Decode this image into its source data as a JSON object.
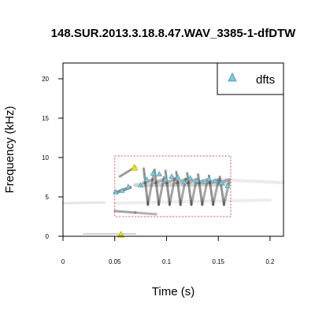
{
  "chart_data": {
    "type": "scatter",
    "title": "148.SUR.2013.3.18.8.47.WAV_3385-1-dfDTW",
    "xlabel": "Time (s)",
    "ylabel": "Frequency (kHz)",
    "xlim": [
      0,
      0.213
    ],
    "ylim": [
      0,
      22
    ],
    "x_ticks": [
      {
        "value": 0,
        "label": "0"
      },
      {
        "value": 0.05,
        "label": "0.05"
      },
      {
        "value": 0.1,
        "label": "0.1"
      },
      {
        "value": 0.15,
        "label": "0.15"
      },
      {
        "value": 0.2,
        "label": "0.2"
      }
    ],
    "y_ticks": [
      {
        "value": 0,
        "label": "0"
      },
      {
        "value": 5,
        "label": "5"
      },
      {
        "value": 10,
        "label": "10"
      },
      {
        "value": 15,
        "label": "15"
      },
      {
        "value": 20,
        "label": "20"
      }
    ],
    "legend": {
      "position": "top-right",
      "entries": [
        {
          "label": "dfts",
          "color": "#7fc8d8"
        }
      ]
    },
    "selection_box": {
      "x0": 0.05,
      "x1": 0.162,
      "y0": 2.5,
      "y1": 10.2,
      "color": "#e05050"
    },
    "start_end_marker_color": "#e0e020",
    "series": [
      {
        "name": "dfts",
        "color": "#7fc8d8",
        "points": [
          {
            "x": 0.051,
            "y": 5.6
          },
          {
            "x": 0.057,
            "y": 5.8
          },
          {
            "x": 0.063,
            "y": 6.3
          },
          {
            "x": 0.069,
            "y": 8.7
          },
          {
            "x": 0.075,
            "y": 6.5
          },
          {
            "x": 0.081,
            "y": 7.2
          },
          {
            "x": 0.087,
            "y": 8.0
          },
          {
            "x": 0.093,
            "y": 7.9
          },
          {
            "x": 0.099,
            "y": 7.2
          },
          {
            "x": 0.105,
            "y": 7.6
          },
          {
            "x": 0.111,
            "y": 7.5
          },
          {
            "x": 0.117,
            "y": 6.9
          },
          {
            "x": 0.123,
            "y": 7.4
          },
          {
            "x": 0.129,
            "y": 7.1
          },
          {
            "x": 0.135,
            "y": 6.9
          },
          {
            "x": 0.141,
            "y": 7.3
          },
          {
            "x": 0.147,
            "y": 7.0
          },
          {
            "x": 0.153,
            "y": 6.8
          },
          {
            "x": 0.159,
            "y": 6.4
          }
        ]
      },
      {
        "name": "",
        "color": "#e0e020",
        "points": [
          {
            "x": 0.069,
            "y": 8.7
          },
          {
            "x": 0.056,
            "y": 0.2
          }
        ]
      }
    ]
  }
}
